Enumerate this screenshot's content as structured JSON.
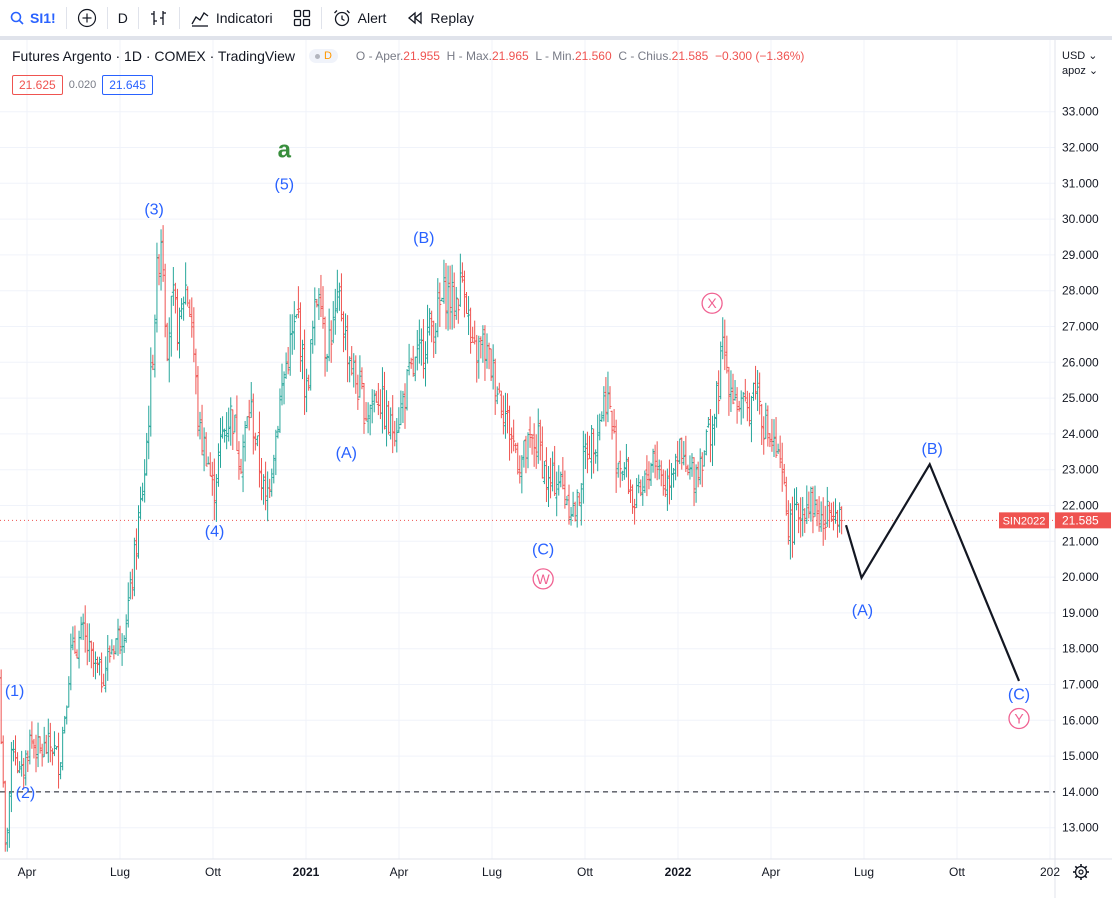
{
  "toolbar": {
    "symbol": "SI1!",
    "interval": "D",
    "indicators_label": "Indicatori",
    "alert_label": "Alert",
    "replay_label": "Replay"
  },
  "legend": {
    "title": "Futures Argento · 1D · COMEX · TradingView",
    "badge": "D",
    "o_label": "O - Aper.",
    "o_val": "21.955",
    "h_label": "H - Max.",
    "h_val": "21.965",
    "l_label": "L - Min.",
    "l_val": "21.560",
    "c_label": "C - Chius.",
    "c_val": "21.585",
    "change": "−0.300 (−1.36%)"
  },
  "quote": {
    "sell": "21.625",
    "spread": "0.020",
    "buy": "21.645"
  },
  "scale": {
    "currency": "USD",
    "mode": "apoz"
  },
  "colors": {
    "up": "#26a69a",
    "down": "#ef5350",
    "wave_blue": "#2962ff",
    "wave_pink": "#f06292",
    "wave_green": "#388e3c",
    "price_tag": "#ef5350"
  },
  "chart_data": {
    "type": "ohlc",
    "title": "Futures Argento · 1D · COMEX · TradingView",
    "ylim": [
      12.2,
      34.0
    ],
    "y_ticks": [
      "13.000",
      "14.000",
      "15.000",
      "16.000",
      "17.000",
      "18.000",
      "19.000",
      "20.000",
      "21.000",
      "22.000",
      "23.000",
      "24.000",
      "25.000",
      "26.000",
      "27.000",
      "28.000",
      "29.000",
      "30.000",
      "31.000",
      "32.000",
      "33.000"
    ],
    "x_ticks": [
      {
        "label": "Apr",
        "t": 3.0
      },
      {
        "label": "Lug",
        "t": 6.0
      },
      {
        "label": "Ott",
        "t": 9.0
      },
      {
        "label": "2021",
        "t": 12.0,
        "bold": true
      },
      {
        "label": "Apr",
        "t": 15.0
      },
      {
        "label": "Lug",
        "t": 18.0
      },
      {
        "label": "Ott",
        "t": 21.0
      },
      {
        "label": "2022",
        "t": 24.0,
        "bold": true
      },
      {
        "label": "Apr",
        "t": 27.0
      },
      {
        "label": "Lug",
        "t": 30.0
      },
      {
        "label": "Ott",
        "t": 33.0
      },
      {
        "label": "202",
        "t": 36.0
      }
    ],
    "price_series": [
      [
        2.1,
        17.2
      ],
      [
        2.3,
        12.3
      ],
      [
        2.55,
        15.5
      ],
      [
        2.8,
        14.3
      ],
      [
        3.1,
        15.5
      ],
      [
        3.4,
        15.1
      ],
      [
        3.8,
        15.3
      ],
      [
        4.05,
        14.8
      ],
      [
        4.4,
        17.8
      ],
      [
        4.8,
        18.4
      ],
      [
        5.1,
        17.6
      ],
      [
        5.4,
        17.2
      ],
      [
        5.8,
        18.2
      ],
      [
        6.1,
        18.5
      ],
      [
        6.35,
        19.6
      ],
      [
        6.6,
        21.5
      ],
      [
        6.8,
        23.0
      ],
      [
        7.0,
        25.5
      ],
      [
        7.2,
        28.5
      ],
      [
        7.35,
        29.8
      ],
      [
        7.5,
        26.5
      ],
      [
        7.7,
        27.7
      ],
      [
        7.9,
        26.8
      ],
      [
        8.1,
        28.2
      ],
      [
        8.3,
        27.3
      ],
      [
        8.55,
        24.0
      ],
      [
        8.8,
        23.5
      ],
      [
        9.0,
        22.3
      ],
      [
        9.3,
        24.0
      ],
      [
        9.6,
        24.6
      ],
      [
        9.9,
        23.3
      ],
      [
        10.2,
        24.8
      ],
      [
        10.4,
        23.7
      ],
      [
        10.7,
        22.0
      ],
      [
        11.0,
        23.9
      ],
      [
        11.3,
        25.7
      ],
      [
        11.5,
        26.5
      ],
      [
        11.75,
        27.3
      ],
      [
        12.0,
        25.0
      ],
      [
        12.2,
        26.7
      ],
      [
        12.45,
        28.5
      ],
      [
        12.6,
        26.5
      ],
      [
        12.9,
        27.0
      ],
      [
        13.1,
        27.8
      ],
      [
        13.3,
        26.5
      ],
      [
        13.6,
        25.5
      ],
      [
        13.95,
        24.6
      ],
      [
        14.3,
        25.2
      ],
      [
        14.7,
        24.1
      ],
      [
        15.0,
        24.5
      ],
      [
        15.3,
        25.5
      ],
      [
        15.6,
        26.0
      ],
      [
        15.9,
        26.8
      ],
      [
        16.2,
        27.2
      ],
      [
        16.5,
        28.0
      ],
      [
        16.8,
        27.6
      ],
      [
        17.1,
        28.5
      ],
      [
        17.35,
        26.1
      ],
      [
        17.7,
        26.5
      ],
      [
        18.0,
        25.8
      ],
      [
        18.3,
        25.0
      ],
      [
        18.6,
        24.0
      ],
      [
        18.9,
        23.2
      ],
      [
        19.2,
        23.6
      ],
      [
        19.5,
        23.8
      ],
      [
        19.8,
        22.5
      ],
      [
        20.1,
        22.8
      ],
      [
        20.4,
        22.3
      ],
      [
        20.7,
        21.7
      ],
      [
        21.0,
        23.5
      ],
      [
        21.35,
        24.0
      ],
      [
        21.7,
        25.2
      ],
      [
        22.0,
        23.4
      ],
      [
        22.3,
        23.0
      ],
      [
        22.6,
        22.0
      ],
      [
        22.85,
        22.3
      ],
      [
        23.2,
        23.5
      ],
      [
        23.6,
        22.5
      ],
      [
        23.95,
        23.6
      ],
      [
        24.3,
        22.8
      ],
      [
        24.6,
        23.0
      ],
      [
        24.9,
        23.8
      ],
      [
        25.2,
        24.5
      ],
      [
        25.45,
        26.5
      ],
      [
        25.6,
        25.7
      ],
      [
        25.9,
        24.9
      ],
      [
        26.2,
        24.5
      ],
      [
        26.5,
        25.5
      ],
      [
        26.8,
        24.2
      ],
      [
        27.15,
        23.5
      ],
      [
        27.4,
        22.5
      ],
      [
        27.6,
        21.3
      ],
      [
        27.9,
        21.8
      ],
      [
        28.2,
        22.2
      ],
      [
        28.5,
        21.8
      ],
      [
        28.7,
        21.4
      ],
      [
        29.0,
        22.2
      ],
      [
        29.3,
        21.6
      ]
    ],
    "projection": [
      [
        29.42,
        21.45
      ],
      [
        29.92,
        19.98
      ],
      [
        32.12,
        23.15
      ],
      [
        35.0,
        17.1
      ]
    ],
    "current_price": {
      "label": "SIN2022",
      "value": "21.585",
      "y": 21.585
    },
    "support_line": 14.0,
    "wave_labels": [
      {
        "text": "a",
        "t": 11.3,
        "y": 31.95,
        "style": "green"
      },
      {
        "text": "(5)",
        "t": 11.3,
        "y": 31.0,
        "style": "blue"
      },
      {
        "text": "(3)",
        "t": 7.1,
        "y": 30.3,
        "style": "blue"
      },
      {
        "text": "(B)",
        "t": 15.8,
        "y": 29.5,
        "style": "blue"
      },
      {
        "text": "(A)",
        "t": 13.3,
        "y": 23.5,
        "style": "blue"
      },
      {
        "text": "(4)",
        "t": 9.05,
        "y": 21.3,
        "style": "blue"
      },
      {
        "text": "(C)",
        "t": 19.65,
        "y": 20.8,
        "style": "blue"
      },
      {
        "text": "(1)",
        "t": 2.6,
        "y": 16.85,
        "style": "blue"
      },
      {
        "text": "(2)",
        "t": 2.95,
        "y": 14.0,
        "style": "blue"
      },
      {
        "text": "(A)",
        "t": 29.95,
        "y": 19.1,
        "style": "blue"
      },
      {
        "text": "(B)",
        "t": 32.2,
        "y": 23.6,
        "style": "blue"
      },
      {
        "text": "(C)",
        "t": 35.0,
        "y": 16.75,
        "style": "blue"
      },
      {
        "text": "W",
        "t": 19.65,
        "y": 19.95,
        "style": "pink"
      },
      {
        "text": "X",
        "t": 25.1,
        "y": 27.65,
        "style": "pink"
      },
      {
        "text": "Y",
        "t": 35.0,
        "y": 16.05,
        "style": "pink"
      }
    ]
  }
}
